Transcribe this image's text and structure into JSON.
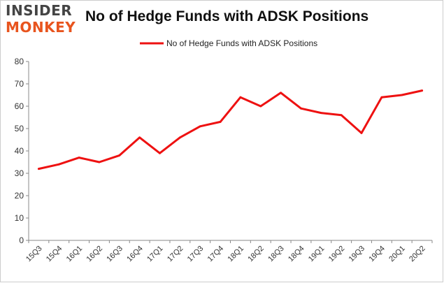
{
  "logo": {
    "line1": "INSIDER",
    "line2": "MONKEY"
  },
  "chart_data": {
    "type": "line",
    "title": "No of Hedge Funds with ADSK Positions",
    "xlabel": "",
    "ylabel": "",
    "categories": [
      "15Q3",
      "15Q4",
      "16Q1",
      "16Q2",
      "16Q3",
      "16Q4",
      "17Q1",
      "17Q2",
      "17Q3",
      "17Q4",
      "18Q1",
      "18Q2",
      "18Q3",
      "18Q4",
      "19Q1",
      "19Q2",
      "19Q3",
      "19Q4",
      "20Q1",
      "20Q2"
    ],
    "series": [
      {
        "name": "No of Hedge Funds with ADSK Positions",
        "color": "#ee1111",
        "values": [
          32,
          34,
          37,
          35,
          38,
          46,
          39,
          46,
          51,
          53,
          64,
          60,
          66,
          59,
          57,
          56,
          48,
          64,
          65,
          67
        ]
      }
    ],
    "ylim": [
      0,
      80
    ],
    "yticks": [
      0,
      10,
      20,
      30,
      40,
      50,
      60,
      70,
      80
    ],
    "grid": false,
    "legend_position": "top-center"
  }
}
